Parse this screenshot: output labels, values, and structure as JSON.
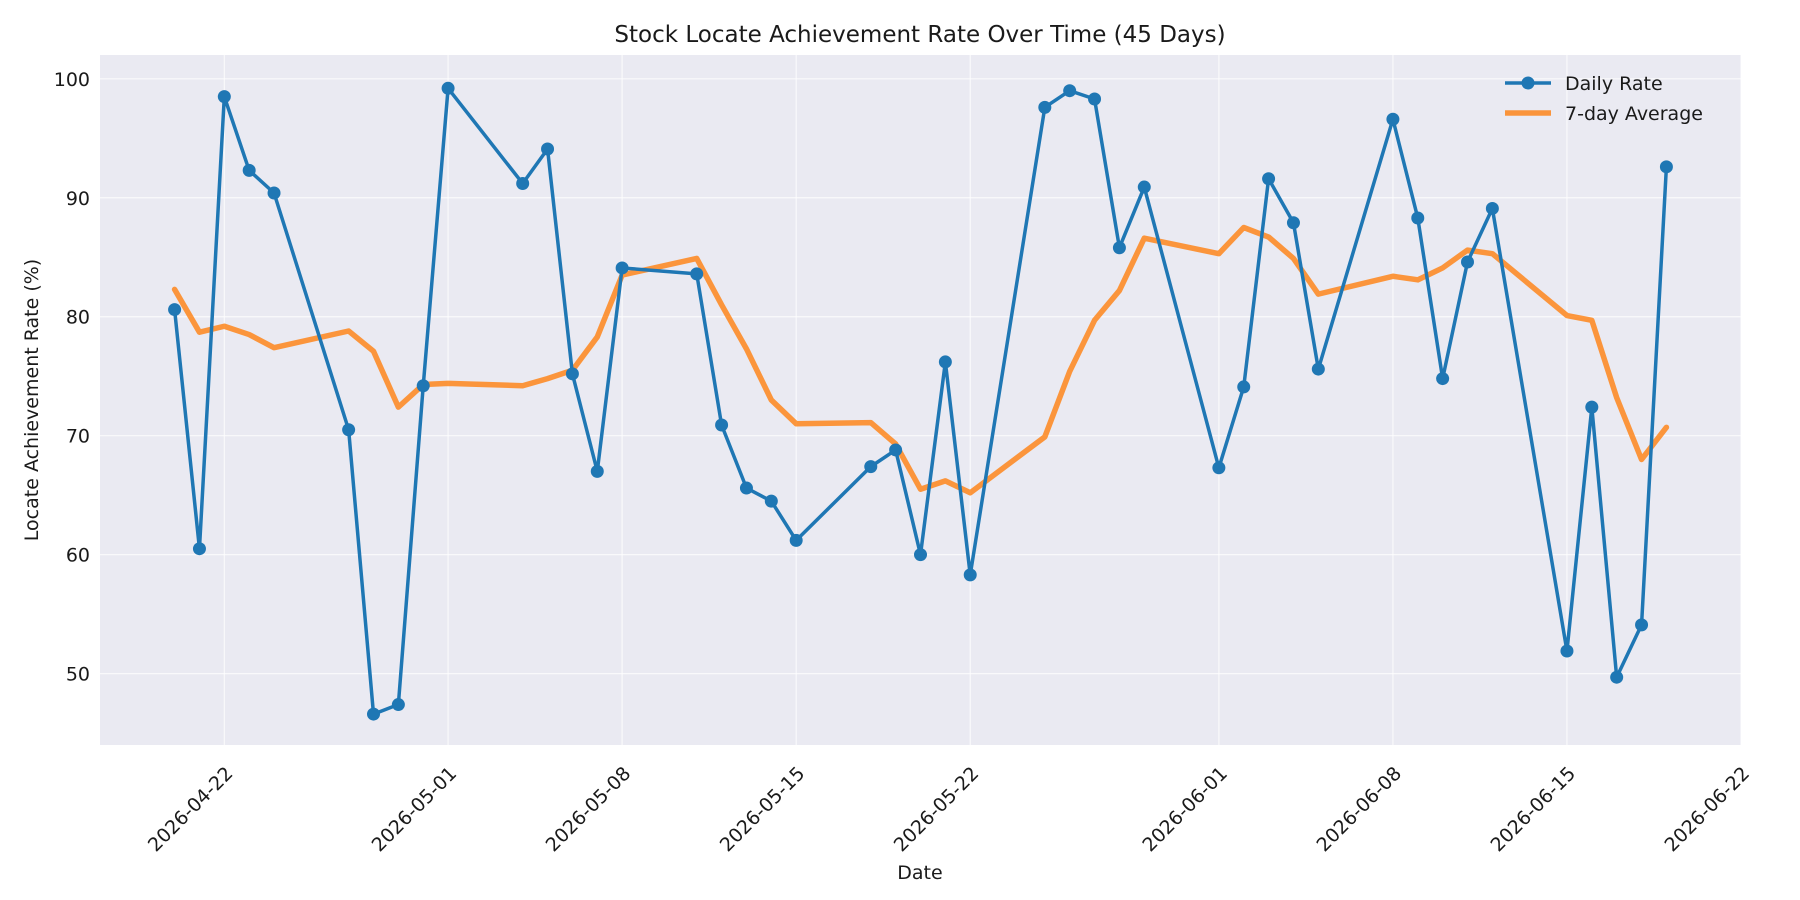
{
  "chart_data": {
    "type": "line",
    "title": "Stock Locate Achievement Rate Over Time (45 Days)",
    "xlabel": "Date",
    "ylabel": "Locate Achievement Rate (%)",
    "xlim": [
      "2026-04-17",
      "2026-06-22"
    ],
    "ylim": [
      44,
      102
    ],
    "x_ticks": [
      "2026-04-22",
      "2026-05-01",
      "2026-05-08",
      "2026-05-15",
      "2026-05-22",
      "2026-06-01",
      "2026-06-08",
      "2026-06-15",
      "2026-06-22"
    ],
    "y_ticks": [
      50,
      60,
      70,
      80,
      90,
      100
    ],
    "grid": true,
    "legend_position": "top-right",
    "x": [
      "2026-04-20",
      "2026-04-21",
      "2026-04-22",
      "2026-04-23",
      "2026-04-24",
      "2026-04-27",
      "2026-04-28",
      "2026-04-29",
      "2026-04-30",
      "2026-05-01",
      "2026-05-04",
      "2026-05-05",
      "2026-05-06",
      "2026-05-07",
      "2026-05-08",
      "2026-05-11",
      "2026-05-12",
      "2026-05-13",
      "2026-05-14",
      "2026-05-15",
      "2026-05-18",
      "2026-05-19",
      "2026-05-20",
      "2026-05-21",
      "2026-05-22",
      "2026-05-25",
      "2026-05-26",
      "2026-05-27",
      "2026-05-28",
      "2026-05-29",
      "2026-06-01",
      "2026-06-02",
      "2026-06-03",
      "2026-06-04",
      "2026-06-05",
      "2026-06-08",
      "2026-06-09",
      "2026-06-10",
      "2026-06-11",
      "2026-06-12",
      "2026-06-15",
      "2026-06-16",
      "2026-06-17",
      "2026-06-18",
      "2026-06-19"
    ],
    "series": [
      {
        "name": "Daily Rate",
        "color": "#1f77b4",
        "marker": "circle",
        "values": [
          80.6,
          60.5,
          98.5,
          92.3,
          90.4,
          70.5,
          46.6,
          47.4,
          74.2,
          99.2,
          91.2,
          94.1,
          75.2,
          67.0,
          84.1,
          83.6,
          70.9,
          65.6,
          64.5,
          61.2,
          67.4,
          68.8,
          60.0,
          76.2,
          58.3,
          97.6,
          99.0,
          98.3,
          85.8,
          90.9,
          67.3,
          74.1,
          91.6,
          87.9,
          75.6,
          96.6,
          88.3,
          74.8,
          84.6,
          89.1,
          51.9,
          72.4,
          49.7,
          54.1,
          92.6
        ]
      },
      {
        "name": "7-day Average",
        "color": "#ff7f0e",
        "marker": "none",
        "values": [
          82.3,
          78.7,
          79.2,
          78.5,
          77.4,
          78.8,
          77.1,
          72.4,
          74.3,
          74.4,
          74.2,
          74.8,
          75.5,
          78.3,
          83.5,
          84.9,
          81.0,
          77.3,
          73.0,
          71.0,
          71.1,
          69.3,
          65.5,
          66.2,
          65.2,
          69.9,
          75.4,
          79.7,
          82.2,
          86.6,
          85.3,
          87.5,
          86.7,
          84.9,
          81.9,
          83.4,
          83.1,
          84.1,
          85.6,
          85.3,
          80.1,
          79.7,
          73.2,
          68.0,
          70.7
        ]
      }
    ]
  }
}
